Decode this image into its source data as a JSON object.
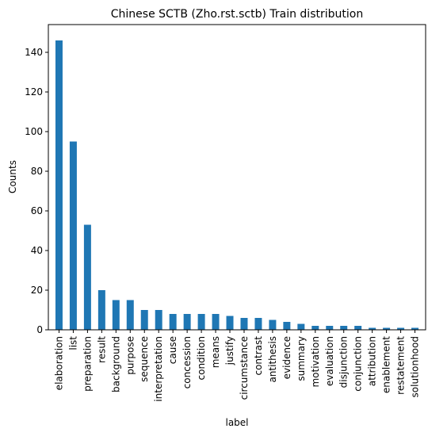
{
  "chart_data": {
    "type": "bar",
    "title": "Chinese SCTB (Zho.rst.sctb) Train distribution",
    "xlabel": "label",
    "ylabel": "Counts",
    "ylim": [
      0,
      154
    ],
    "yticks": [
      0,
      20,
      40,
      60,
      80,
      100,
      120,
      140
    ],
    "grid": false,
    "legend": "none",
    "categories": [
      "elaboration",
      "list",
      "preparation",
      "result",
      "background",
      "purpose",
      "sequence",
      "interpretation",
      "cause",
      "concession",
      "condition",
      "means",
      "justify",
      "circumstance",
      "contrast",
      "antithesis",
      "evidence",
      "summary",
      "motivation",
      "evaluation",
      "disjunction",
      "conjunction",
      "attribution",
      "enablement",
      "restatement",
      "solutionhood"
    ],
    "values": [
      146,
      95,
      53,
      20,
      15,
      15,
      10,
      10,
      8,
      8,
      8,
      8,
      7,
      6,
      6,
      5,
      4,
      3,
      2,
      2,
      2,
      2,
      1,
      1,
      1,
      1
    ],
    "bar_color": "#1f77b4"
  }
}
